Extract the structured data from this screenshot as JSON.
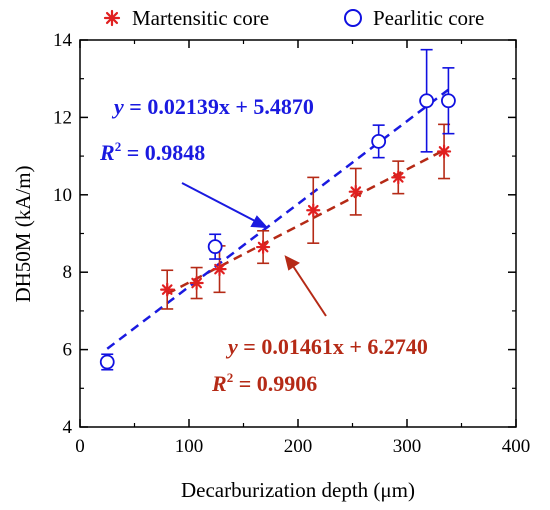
{
  "chart_data": {
    "type": "scatter",
    "xlabel": "Decarburization depth (μm)",
    "ylabel": "DH50M (kA/m)",
    "xlim": [
      0,
      400
    ],
    "ylim": [
      4,
      14
    ],
    "xticks": [
      0,
      100,
      200,
      300,
      400
    ],
    "yticks": [
      4,
      6,
      8,
      10,
      12,
      14
    ],
    "grid": false,
    "legend_position": "top",
    "series": [
      {
        "name": "Martensitic core",
        "marker": "asterisk",
        "color": "#e02020",
        "line_color": "#b52a16",
        "x": [
          80,
          107,
          128,
          168,
          214,
          253,
          292,
          334
        ],
        "y": [
          7.55,
          7.72,
          8.08,
          8.65,
          9.6,
          10.08,
          10.45,
          11.12
        ],
        "err": [
          0.5,
          0.4,
          0.6,
          0.42,
          0.85,
          0.6,
          0.42,
          0.7
        ],
        "fit": {
          "slope": 0.01461,
          "intercept": 6.274,
          "x_range": [
            80,
            334
          ],
          "equation": "y = 0.01461x + 6.2740",
          "equation_lhs": "y",
          "equation_rhs": "0.01461x + 6.2740",
          "r2_label": "R",
          "r2_value": "0.9906"
        }
      },
      {
        "name": "Pearlitic core",
        "marker": "open-circle",
        "color": "#1010e0",
        "line_color": "#1a1ae0",
        "x": [
          25,
          124,
          274,
          318,
          338
        ],
        "y": [
          5.68,
          8.66,
          11.38,
          12.43,
          12.43
        ],
        "err": [
          0.2,
          0.32,
          0.42,
          1.32,
          0.85
        ],
        "fit": {
          "slope": 0.02139,
          "intercept": 5.487,
          "x_range": [
            25,
            338
          ],
          "equation": "y = 0.02139x + 5.4870",
          "equation_lhs": "y",
          "equation_rhs": "0.02139x + 5.4870",
          "r2_label": "R",
          "r2_value": "0.9848"
        }
      }
    ]
  }
}
